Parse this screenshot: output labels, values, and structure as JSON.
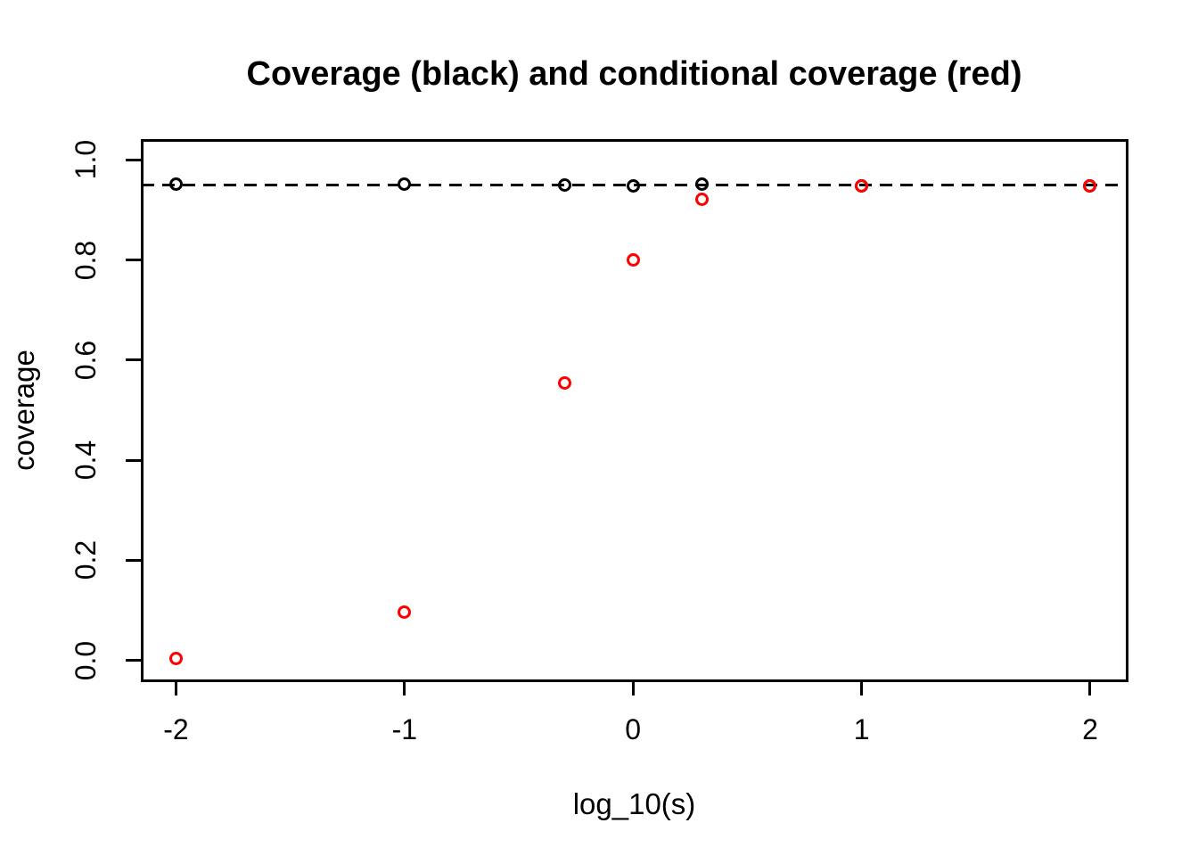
{
  "page": {
    "background": "#FFFFFF"
  },
  "chart_data": {
    "type": "scatter",
    "title": "Coverage (black) and conditional coverage (red)",
    "xlabel": "log_10(s)",
    "ylabel": "coverage",
    "xlim": [
      -2.15,
      2.16
    ],
    "ylim": [
      -0.04,
      1.04
    ],
    "grid": false,
    "legend_position": "none",
    "x_ticks": [
      -2,
      -1,
      0,
      1,
      2
    ],
    "x_tick_labels": [
      "-2",
      "-1",
      "0",
      "1",
      "2"
    ],
    "y_ticks": [
      0.0,
      0.2,
      0.4,
      0.6,
      0.8,
      1.0
    ],
    "y_tick_labels": [
      "0.0",
      "0.2",
      "0.4",
      "0.6",
      "0.8",
      "1.0"
    ],
    "reference_line": {
      "y": 0.95,
      "style": "dashed",
      "color": "#000000"
    },
    "x": [
      -2,
      -1,
      -0.301,
      0,
      0.301,
      1,
      2
    ],
    "series": [
      {
        "name": "coverage",
        "color": "#000000",
        "marker": "open-circle",
        "values": [
          0.951,
          0.951,
          0.95,
          0.948,
          0.952,
          0.948,
          0.948
        ]
      },
      {
        "name": "conditional coverage",
        "color": "#FF0000",
        "marker": "open-circle",
        "values": [
          0.003,
          0.096,
          0.554,
          0.8,
          0.921,
          0.948,
          0.948
        ]
      }
    ]
  }
}
